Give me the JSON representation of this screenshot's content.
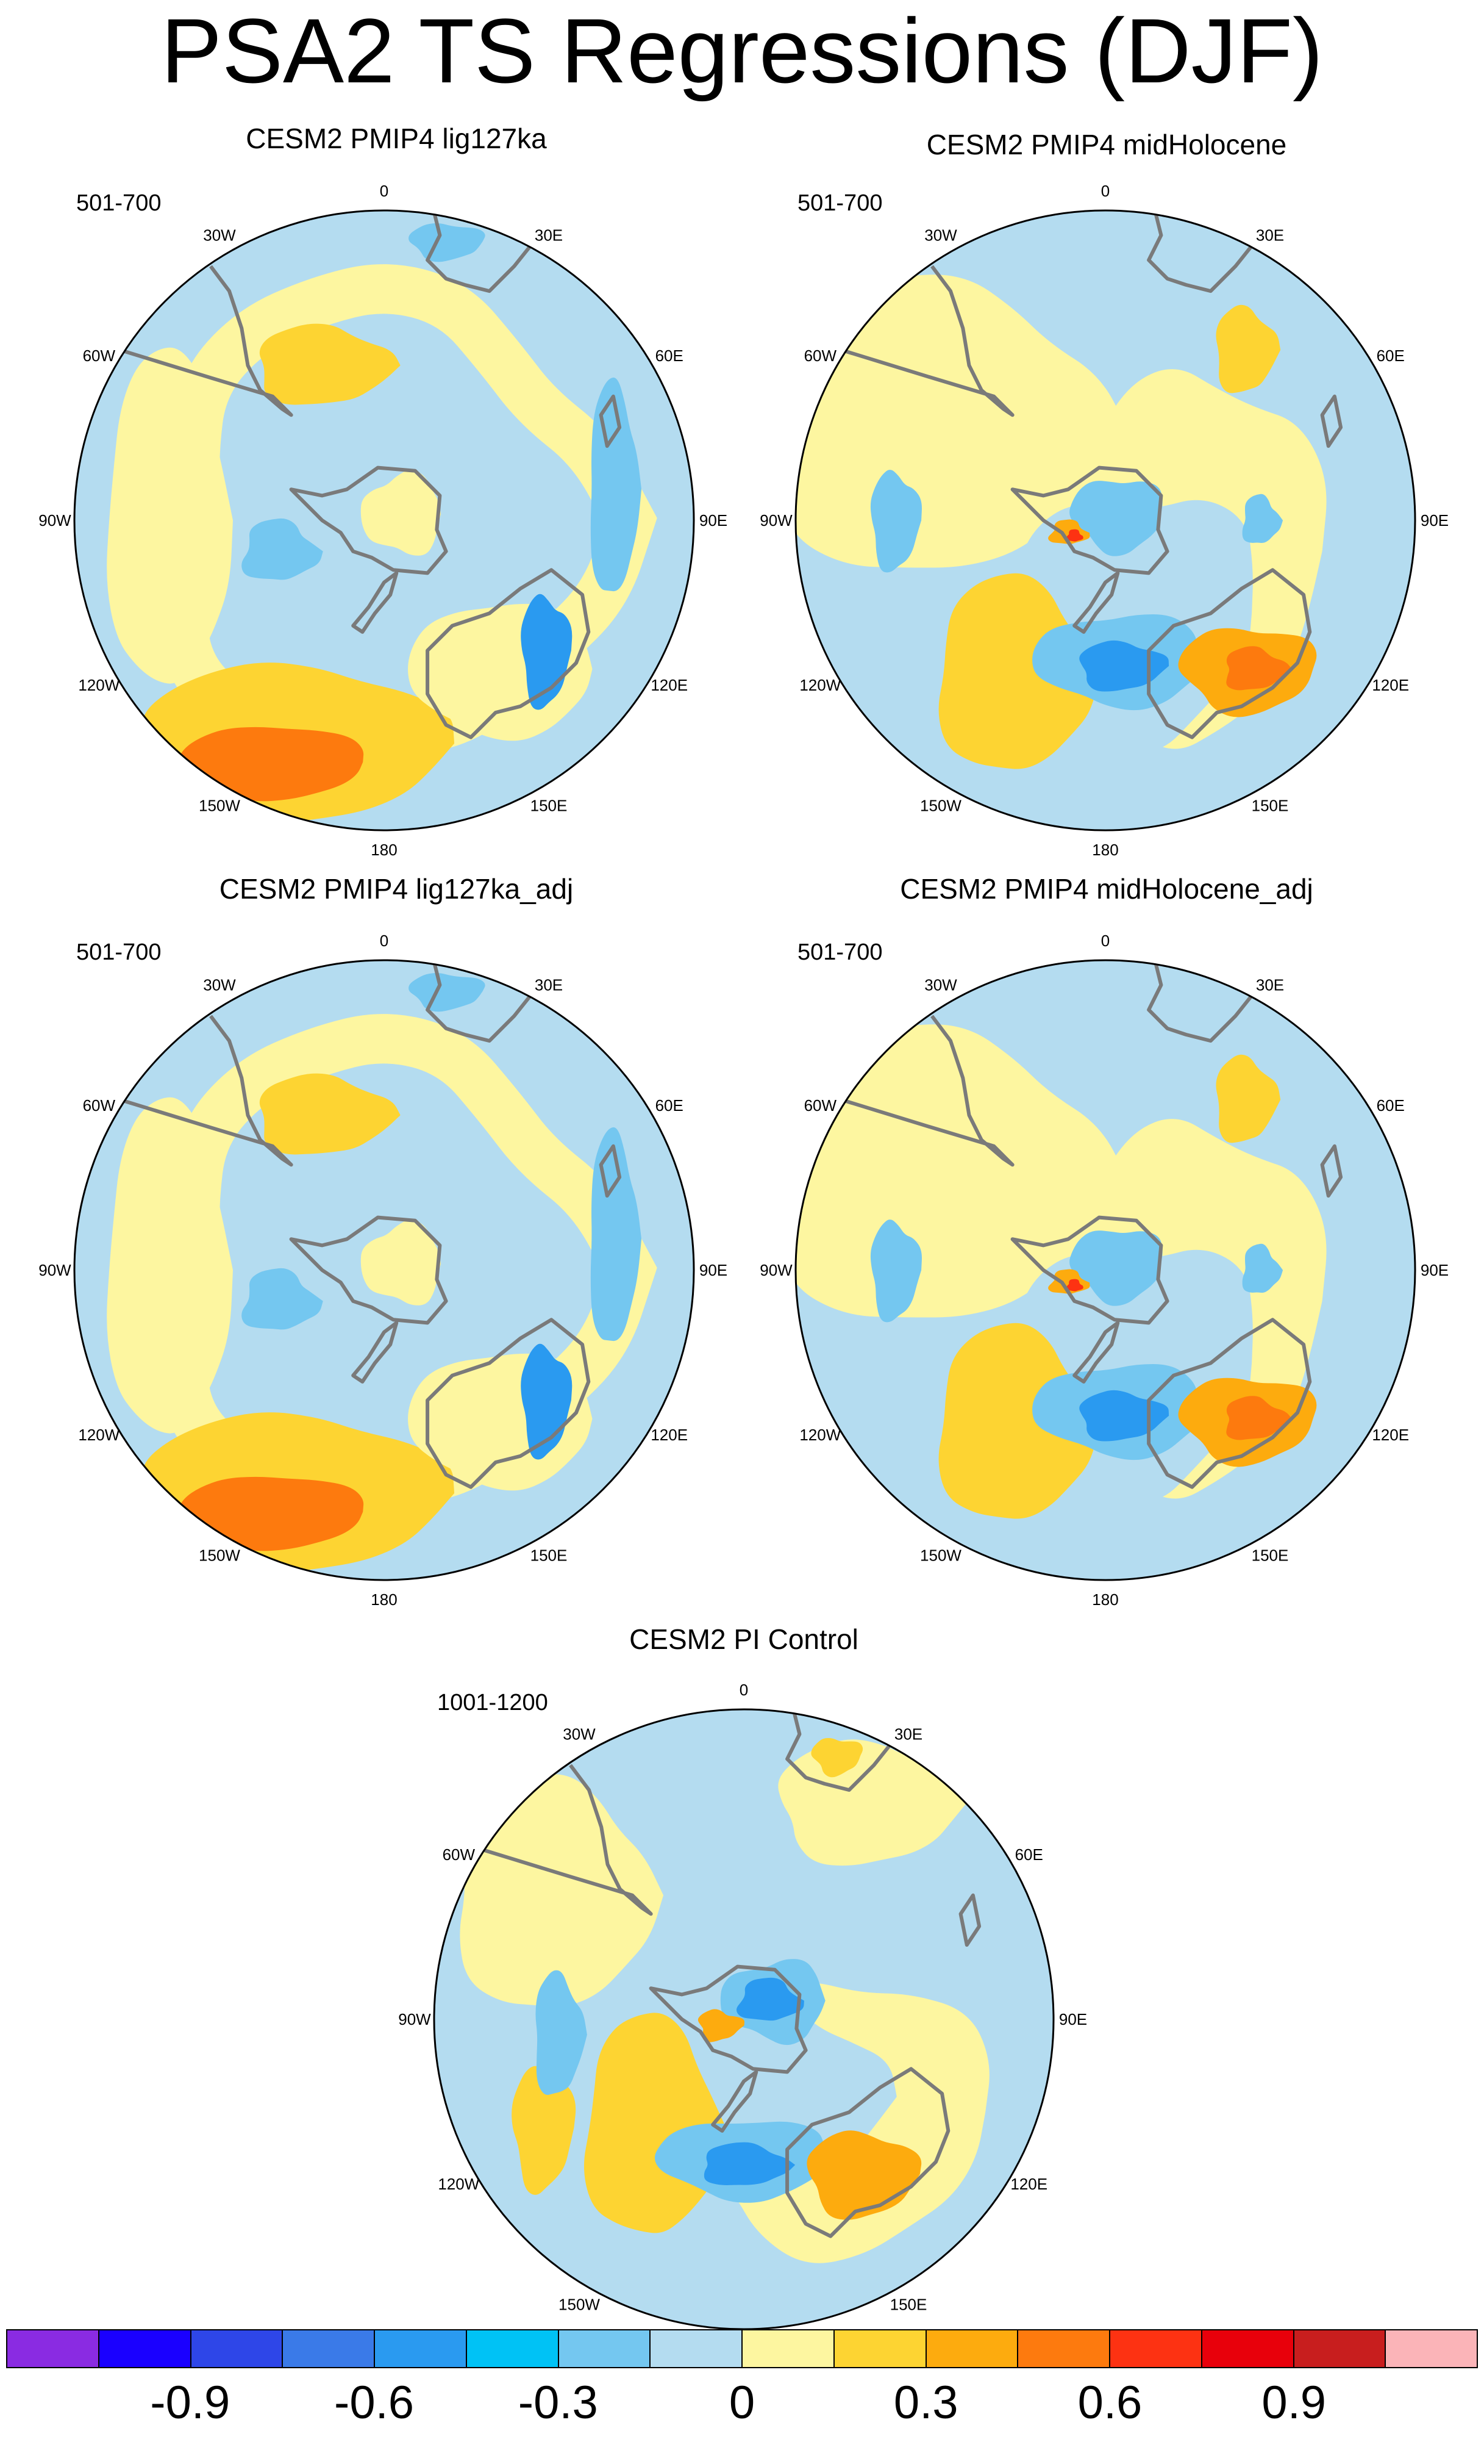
{
  "title": "PSA2 TS Regressions (DJF)",
  "panels": [
    {
      "title": "CESM2 PMIP4 lig127ka",
      "period": "501-700",
      "pattern": "A"
    },
    {
      "title": "CESM2 PMIP4 midHolocene",
      "period": "501-700",
      "pattern": "B"
    },
    {
      "title": "CESM2 PMIP4 lig127ka_adj",
      "period": "501-700",
      "pattern": "A"
    },
    {
      "title": "CESM2 PMIP4 midHolocene_adj",
      "period": "501-700",
      "pattern": "B"
    },
    {
      "title": "CESM2 PI Control",
      "period": "1001-1200",
      "pattern": "C"
    }
  ],
  "longitude_labels": [
    "0",
    "30E",
    "60E",
    "90E",
    "120E",
    "150E",
    "180",
    "150W",
    "120W",
    "90W",
    "60W",
    "30W"
  ],
  "colorbar": {
    "colors": [
      "#8a2be2",
      "#1a00ff",
      "#2e46e8",
      "#3a7ae8",
      "#2a9af0",
      "#00c2f5",
      "#74c7f0",
      "#b4dcf0",
      "#fdf6a0",
      "#fdd432",
      "#fdab0e",
      "#fd7a0e",
      "#fd3212",
      "#e8000b",
      "#c81e1e",
      "#fbb4b8"
    ],
    "labels": [
      "-0.9",
      "-0.6",
      "-0.3",
      "0",
      "0.3",
      "0.6",
      "0.9"
    ]
  }
}
